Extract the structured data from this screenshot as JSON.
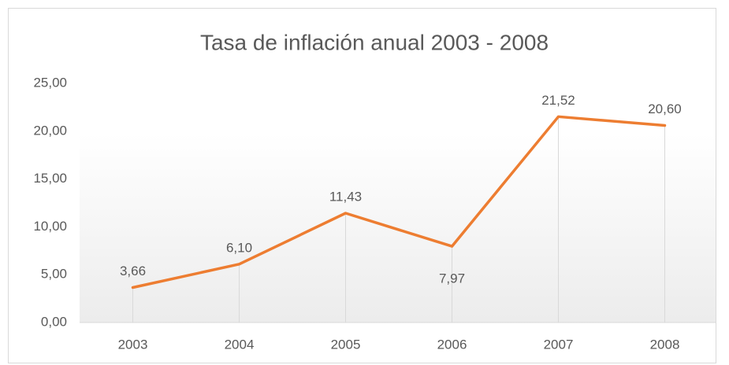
{
  "chart_data": {
    "type": "line",
    "title": "Tasa de inflación anual 2003 - 2008",
    "categories": [
      "2003",
      "2004",
      "2005",
      "2006",
      "2007",
      "2008"
    ],
    "series": [
      {
        "color": "#ed7d31",
        "values": [
          3.66,
          6.1,
          11.43,
          7.97,
          21.52,
          20.6
        ],
        "value_labels": [
          "3,66",
          "6,10",
          "11,43",
          "7,97",
          "21,52",
          "20,60"
        ]
      }
    ],
    "ylim": [
      0,
      25
    ],
    "yticks": [
      {
        "value": 0,
        "label": "0,00"
      },
      {
        "value": 5,
        "label": "5,00"
      },
      {
        "value": 10,
        "label": "10,00"
      },
      {
        "value": 15,
        "label": "15,00"
      },
      {
        "value": 20,
        "label": "20,00"
      },
      {
        "value": 25,
        "label": "25,00"
      }
    ],
    "grid": false,
    "drop_lines": true
  }
}
